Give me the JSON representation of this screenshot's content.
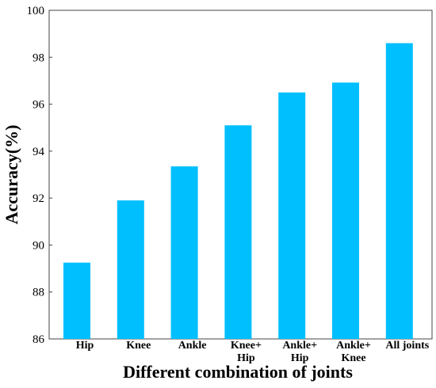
{
  "chart_data": {
    "type": "bar",
    "categories": [
      [
        "Hip"
      ],
      [
        "Knee"
      ],
      [
        "Ankle"
      ],
      [
        "Knee+",
        "Hip"
      ],
      [
        "Ankle+",
        "Hip"
      ],
      [
        "Ankle+",
        "Knee"
      ],
      [
        "All joints"
      ]
    ],
    "values": [
      89.25,
      91.9,
      93.35,
      95.1,
      96.5,
      96.92,
      98.6
    ],
    "title": "",
    "xlabel": "Different combination of joints",
    "ylabel": "Accuracy(%)",
    "ylim": [
      86,
      100
    ],
    "yticks": [
      86,
      88,
      90,
      92,
      94,
      96,
      98,
      100
    ],
    "grid": false,
    "bar_color": "#00BFFF"
  }
}
